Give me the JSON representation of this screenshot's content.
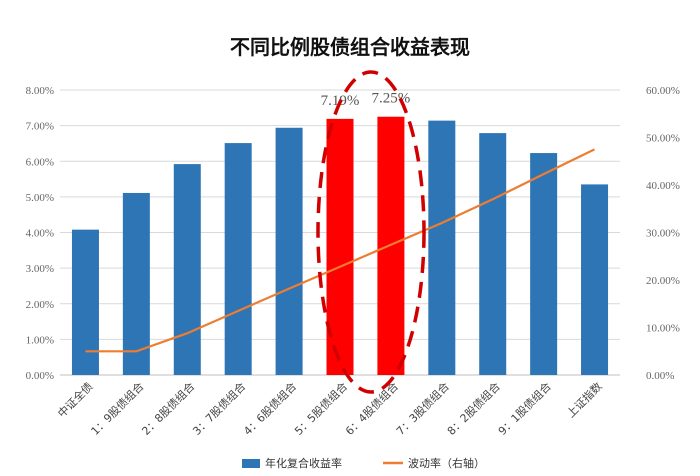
{
  "chart_data": {
    "type": "bar",
    "title": "不同比例股债组合收益表现",
    "categories": [
      "中证全债",
      "1：9股债组合",
      "2：8股债组合",
      "3：7股债组合",
      "4：6股债组合",
      "5：5股债组合",
      "6：4股债组合",
      "7：3股债组合",
      "8：2股债组合",
      "9：1股债组合",
      "上证指数"
    ],
    "series": [
      {
        "name": "年化复合收益率",
        "axis": "left",
        "kind": "bar",
        "values": [
          4.08,
          5.11,
          5.92,
          6.51,
          6.94,
          7.19,
          7.25,
          7.14,
          6.79,
          6.23,
          5.35
        ],
        "colors": [
          "#2e75b6",
          "#2e75b6",
          "#2e75b6",
          "#2e75b6",
          "#2e75b6",
          "#ff0000",
          "#ff0000",
          "#2e75b6",
          "#2e75b6",
          "#2e75b6",
          "#2e75b6"
        ]
      },
      {
        "name": "波动率（右轴）",
        "axis": "right",
        "kind": "line",
        "color": "#ed7d31",
        "values": [
          5.0,
          5.0,
          8.8,
          13.5,
          18.2,
          22.8,
          27.4,
          32.0,
          37.0,
          42.3,
          47.5
        ]
      }
    ],
    "data_labels": [
      {
        "index": 5,
        "text": "7.19%"
      },
      {
        "index": 6,
        "text": "7.25%"
      }
    ],
    "left_axis": {
      "min": 0,
      "max": 8,
      "ticks": [
        "0.00%",
        "1.00%",
        "2.00%",
        "3.00%",
        "4.00%",
        "5.00%",
        "6.00%",
        "7.00%",
        "8.00%"
      ]
    },
    "right_axis": {
      "min": 0,
      "max": 60,
      "ticks": [
        "0.00%",
        "10.00%",
        "20.00%",
        "30.00%",
        "40.00%",
        "50.00%",
        "60.00%"
      ]
    },
    "annotation": "red dashed ellipse highlighting 5：5 and 6：4 bars",
    "legend_position": "bottom",
    "grid": true
  }
}
